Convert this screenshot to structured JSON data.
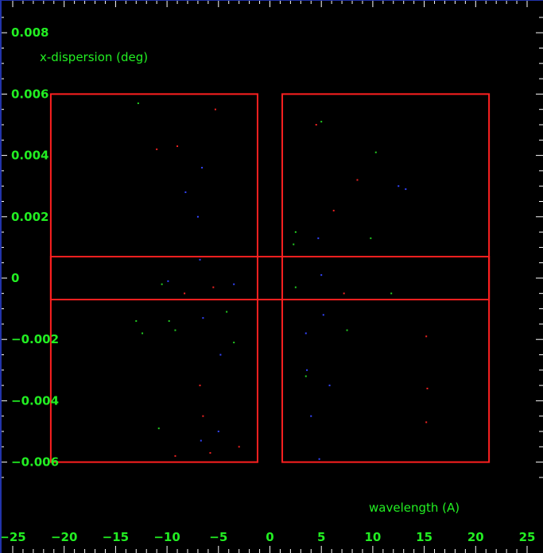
{
  "chart_data": {
    "type": "scatter",
    "xlabel": "wavelength (A)",
    "ylabel": "x-dispersion (deg)",
    "xlim": [
      -25,
      25
    ],
    "ylim": [
      -0.0063,
      0.0088
    ],
    "x_ticks": [
      -25,
      -20,
      -15,
      -10,
      -5,
      0,
      5,
      10,
      15,
      20,
      25
    ],
    "y_ticks": [
      {
        "value": 0.008,
        "label": "0.008"
      },
      {
        "value": 0.006,
        "label": "0.006"
      },
      {
        "value": 0.004,
        "label": "0.004"
      },
      {
        "value": 0.002,
        "label": "0.002"
      },
      {
        "value": 0,
        "label": "0"
      },
      {
        "value": -0.002,
        "label": "−0.002"
      },
      {
        "value": -0.004,
        "label": "−0.004"
      },
      {
        "value": -0.006,
        "label": "−0.006"
      }
    ],
    "regions": [
      {
        "x0": -21.3,
        "x1": -1.2,
        "y0": -0.006,
        "y1": 0.006
      },
      {
        "x0": 1.2,
        "x1": 21.3,
        "y0": -0.006,
        "y1": 0.006
      },
      {
        "x0": -21.3,
        "x1": 21.3,
        "y0": -0.0007,
        "y1": 0.0007
      }
    ],
    "series": [
      {
        "color": "#ee2222",
        "points": [
          [
            -5.3,
            0.0055
          ],
          [
            -11.0,
            0.0042
          ],
          [
            -9.0,
            0.0043
          ],
          [
            -8.3,
            -0.0005
          ],
          [
            -5.5,
            -0.0003
          ],
          [
            -6.8,
            -0.0035
          ],
          [
            -6.5,
            -0.0045
          ],
          [
            -9.2,
            -0.0058
          ],
          [
            -5.8,
            -0.0057
          ],
          [
            -3.0,
            -0.0055
          ],
          [
            4.5,
            0.005
          ],
          [
            6.2,
            0.0022
          ],
          [
            8.5,
            0.0032
          ],
          [
            7.2,
            -0.0005
          ],
          [
            15.2,
            -0.0019
          ],
          [
            15.3,
            -0.0036
          ],
          [
            15.2,
            -0.0047
          ]
        ]
      },
      {
        "color": "#22cc22",
        "points": [
          [
            -12.8,
            0.0057
          ],
          [
            -10.5,
            -0.0002
          ],
          [
            -13.0,
            -0.0014
          ],
          [
            -12.4,
            -0.0018
          ],
          [
            -9.8,
            -0.0014
          ],
          [
            -9.2,
            -0.0017
          ],
          [
            -4.2,
            -0.0011
          ],
          [
            -3.5,
            -0.0021
          ],
          [
            -10.8,
            -0.0049
          ],
          [
            2.5,
            0.0015
          ],
          [
            2.3,
            0.0011
          ],
          [
            2.5,
            -0.0003
          ],
          [
            10.3,
            0.0041
          ],
          [
            9.8,
            0.0013
          ],
          [
            7.5,
            -0.0017
          ],
          [
            11.8,
            -0.0005
          ],
          [
            3.5,
            -0.0032
          ],
          [
            5.0,
            0.0051
          ]
        ]
      },
      {
        "color": "#3344ff",
        "points": [
          [
            -6.6,
            0.0036
          ],
          [
            -8.2,
            0.0028
          ],
          [
            -7.0,
            0.002
          ],
          [
            -6.8,
            0.0006
          ],
          [
            -9.9,
            -0.0001
          ],
          [
            -3.5,
            -0.0002
          ],
          [
            -6.5,
            -0.0013
          ],
          [
            -4.8,
            -0.0025
          ],
          [
            -5.0,
            -0.005
          ],
          [
            -6.7,
            -0.0053
          ],
          [
            4.7,
            0.0013
          ],
          [
            5.0,
            0.0001
          ],
          [
            5.2,
            -0.0012
          ],
          [
            3.5,
            -0.0018
          ],
          [
            3.6,
            -0.003
          ],
          [
            5.8,
            -0.0035
          ],
          [
            4.0,
            -0.0045
          ],
          [
            4.8,
            -0.0059
          ],
          [
            12.5,
            0.003
          ],
          [
            13.2,
            0.0029
          ]
        ]
      }
    ]
  }
}
